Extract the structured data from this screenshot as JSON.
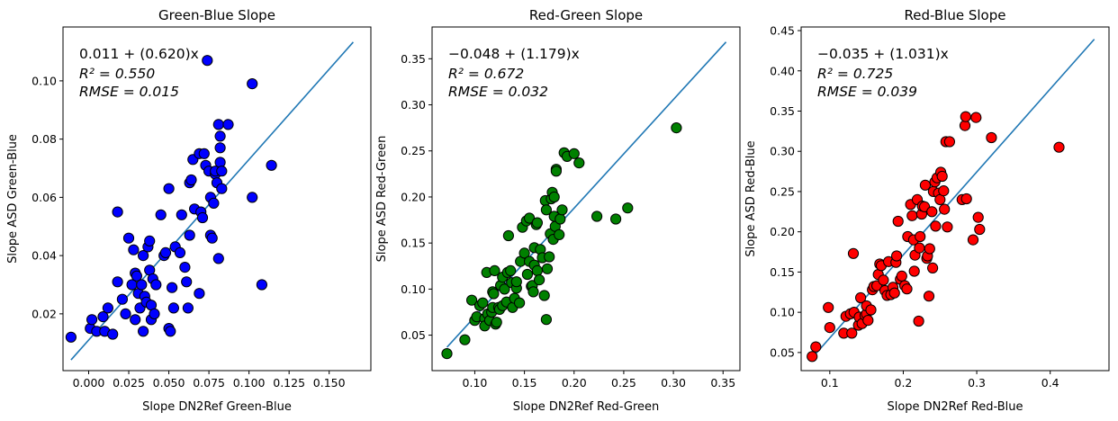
{
  "chart_data": [
    {
      "type": "scatter",
      "title": "Green-Blue Slope",
      "xlabel": "Slope DN2Ref Green-Blue",
      "ylabel": "Slope ASD Green-Blue",
      "xlim": [
        -0.016,
        0.176
      ],
      "ylim": [
        0.0005,
        0.1185
      ],
      "xticks": [
        0.0,
        0.025,
        0.05,
        0.075,
        0.1,
        0.125,
        0.15
      ],
      "xtick_labels": [
        "0.000",
        "0.025",
        "0.050",
        "0.075",
        "0.100",
        "0.125",
        "0.150"
      ],
      "yticks": [
        0.02,
        0.04,
        0.06,
        0.08,
        0.1
      ],
      "ytick_labels": [
        "0.02",
        "0.04",
        "0.06",
        "0.08",
        "0.10"
      ],
      "marker_color": "#0000ff",
      "line_color": "#1f77b4",
      "grid": false,
      "annotation": {
        "equation": "0.011 + (0.620)x",
        "r2": "R² = 0.550",
        "rmse": "RMSE = 0.015"
      },
      "fit_line": {
        "x": [
          -0.011,
          0.165
        ],
        "y": [
          0.00418,
          0.1133
        ]
      },
      "points": [
        [
          -0.011,
          0.012
        ],
        [
          0.001,
          0.015
        ],
        [
          0.002,
          0.018
        ],
        [
          0.005,
          0.014
        ],
        [
          0.009,
          0.019
        ],
        [
          0.01,
          0.014
        ],
        [
          0.012,
          0.022
        ],
        [
          0.015,
          0.013
        ],
        [
          0.018,
          0.031
        ],
        [
          0.018,
          0.055
        ],
        [
          0.021,
          0.025
        ],
        [
          0.023,
          0.02
        ],
        [
          0.025,
          0.046
        ],
        [
          0.027,
          0.03
        ],
        [
          0.028,
          0.042
        ],
        [
          0.029,
          0.034
        ],
        [
          0.029,
          0.018
        ],
        [
          0.03,
          0.033
        ],
        [
          0.031,
          0.027
        ],
        [
          0.032,
          0.022
        ],
        [
          0.033,
          0.03
        ],
        [
          0.034,
          0.014
        ],
        [
          0.034,
          0.04
        ],
        [
          0.035,
          0.026
        ],
        [
          0.036,
          0.024
        ],
        [
          0.037,
          0.043
        ],
        [
          0.038,
          0.045
        ],
        [
          0.038,
          0.035
        ],
        [
          0.039,
          0.018
        ],
        [
          0.039,
          0.023
        ],
        [
          0.04,
          0.032
        ],
        [
          0.041,
          0.02
        ],
        [
          0.042,
          0.03
        ],
        [
          0.045,
          0.054
        ],
        [
          0.047,
          0.04
        ],
        [
          0.048,
          0.041
        ],
        [
          0.05,
          0.063
        ],
        [
          0.05,
          0.015
        ],
        [
          0.051,
          0.014
        ],
        [
          0.052,
          0.029
        ],
        [
          0.053,
          0.022
        ],
        [
          0.054,
          0.043
        ],
        [
          0.057,
          0.041
        ],
        [
          0.058,
          0.054
        ],
        [
          0.06,
          0.036
        ],
        [
          0.061,
          0.031
        ],
        [
          0.062,
          0.022
        ],
        [
          0.063,
          0.047
        ],
        [
          0.063,
          0.065
        ],
        [
          0.064,
          0.066
        ],
        [
          0.065,
          0.073
        ],
        [
          0.066,
          0.056
        ],
        [
          0.069,
          0.075
        ],
        [
          0.069,
          0.027
        ],
        [
          0.07,
          0.055
        ],
        [
          0.071,
          0.053
        ],
        [
          0.072,
          0.075
        ],
        [
          0.073,
          0.071
        ],
        [
          0.074,
          0.107
        ],
        [
          0.075,
          0.069
        ],
        [
          0.076,
          0.06
        ],
        [
          0.076,
          0.047
        ],
        [
          0.077,
          0.046
        ],
        [
          0.078,
          0.058
        ],
        [
          0.079,
          0.068
        ],
        [
          0.079,
          0.069
        ],
        [
          0.08,
          0.065
        ],
        [
          0.081,
          0.039
        ],
        [
          0.081,
          0.085
        ],
        [
          0.082,
          0.081
        ],
        [
          0.082,
          0.077
        ],
        [
          0.082,
          0.072
        ],
        [
          0.083,
          0.063
        ],
        [
          0.083,
          0.069
        ],
        [
          0.087,
          0.085
        ],
        [
          0.102,
          0.099
        ],
        [
          0.102,
          0.06
        ],
        [
          0.108,
          0.03
        ],
        [
          0.114,
          0.071
        ]
      ]
    },
    {
      "type": "scatter",
      "title": "Red-Green Slope",
      "xlabel": "Slope DN2Ref Red-Green",
      "ylabel": "Slope ASD Red-Green",
      "xlim": [
        0.057,
        0.367
      ],
      "ylim": [
        0.0115,
        0.3845
      ],
      "xticks": [
        0.1,
        0.15,
        0.2,
        0.25,
        0.3,
        0.35
      ],
      "xtick_labels": [
        "0.10",
        "0.15",
        "0.20",
        "0.25",
        "0.30",
        "0.35"
      ],
      "yticks": [
        0.05,
        0.1,
        0.15,
        0.2,
        0.25,
        0.3,
        0.35
      ],
      "ytick_labels": [
        "0.05",
        "0.10",
        "0.15",
        "0.20",
        "0.25",
        "0.30",
        "0.35"
      ],
      "marker_color": "#008000",
      "line_color": "#1f77b4",
      "grid": false,
      "annotation": {
        "equation": "−0.048 + (1.179)x",
        "r2": "R² = 0.672",
        "rmse": "RMSE = 0.032"
      },
      "fit_line": {
        "x": [
          0.072,
          0.353
        ],
        "y": [
          0.0369,
          0.3682
        ]
      },
      "points": [
        [
          0.072,
          0.03
        ],
        [
          0.09,
          0.045
        ],
        [
          0.097,
          0.088
        ],
        [
          0.1,
          0.066
        ],
        [
          0.102,
          0.07
        ],
        [
          0.105,
          0.082
        ],
        [
          0.108,
          0.085
        ],
        [
          0.11,
          0.068
        ],
        [
          0.11,
          0.06
        ],
        [
          0.112,
          0.118
        ],
        [
          0.113,
          0.073
        ],
        [
          0.115,
          0.066
        ],
        [
          0.117,
          0.075
        ],
        [
          0.118,
          0.08
        ],
        [
          0.118,
          0.097
        ],
        [
          0.119,
          0.095
        ],
        [
          0.12,
          0.12
        ],
        [
          0.121,
          0.062
        ],
        [
          0.122,
          0.064
        ],
        [
          0.124,
          0.08
        ],
        [
          0.125,
          0.078
        ],
        [
          0.126,
          0.104
        ],
        [
          0.128,
          0.082
        ],
        [
          0.128,
          0.113
        ],
        [
          0.13,
          0.1
        ],
        [
          0.132,
          0.086
        ],
        [
          0.133,
          0.118
        ],
        [
          0.134,
          0.158
        ],
        [
          0.136,
          0.12
        ],
        [
          0.137,
          0.107
        ],
        [
          0.138,
          0.08
        ],
        [
          0.14,
          0.09
        ],
        [
          0.142,
          0.101
        ],
        [
          0.142,
          0.108
        ],
        [
          0.145,
          0.085
        ],
        [
          0.146,
          0.13
        ],
        [
          0.148,
          0.167
        ],
        [
          0.15,
          0.139
        ],
        [
          0.152,
          0.174
        ],
        [
          0.153,
          0.116
        ],
        [
          0.155,
          0.177
        ],
        [
          0.155,
          0.13
        ],
        [
          0.157,
          0.103
        ],
        [
          0.158,
          0.104
        ],
        [
          0.159,
          0.097
        ],
        [
          0.16,
          0.126
        ],
        [
          0.16,
          0.145
        ],
        [
          0.162,
          0.17
        ],
        [
          0.163,
          0.172
        ],
        [
          0.163,
          0.12
        ],
        [
          0.165,
          0.11
        ],
        [
          0.166,
          0.143
        ],
        [
          0.168,
          0.134
        ],
        [
          0.17,
          0.093
        ],
        [
          0.171,
          0.196
        ],
        [
          0.172,
          0.067
        ],
        [
          0.172,
          0.186
        ],
        [
          0.173,
          0.122
        ],
        [
          0.175,
          0.135
        ],
        [
          0.176,
          0.16
        ],
        [
          0.177,
          0.198
        ],
        [
          0.178,
          0.205
        ],
        [
          0.179,
          0.154
        ],
        [
          0.18,
          0.2
        ],
        [
          0.18,
          0.179
        ],
        [
          0.181,
          0.168
        ],
        [
          0.182,
          0.23
        ],
        [
          0.182,
          0.228
        ],
        [
          0.185,
          0.159
        ],
        [
          0.186,
          0.176
        ],
        [
          0.188,
          0.186
        ],
        [
          0.19,
          0.248
        ],
        [
          0.193,
          0.244
        ],
        [
          0.2,
          0.247
        ],
        [
          0.205,
          0.237
        ],
        [
          0.223,
          0.179
        ],
        [
          0.242,
          0.176
        ],
        [
          0.254,
          0.188
        ],
        [
          0.303,
          0.275
        ]
      ]
    },
    {
      "type": "scatter",
      "title": "Red-Blue Slope",
      "xlabel": "Slope DN2Ref Red-Blue",
      "ylabel": "Slope ASD Red-Blue",
      "xlim": [
        0.061,
        0.48
      ],
      "ylim": [
        0.0275,
        0.4545
      ],
      "xticks": [
        0.1,
        0.2,
        0.3,
        0.4
      ],
      "xtick_labels": [
        "0.1",
        "0.2",
        "0.3",
        "0.4"
      ],
      "yticks": [
        0.05,
        0.1,
        0.15,
        0.2,
        0.25,
        0.3,
        0.35,
        0.4,
        0.45
      ],
      "ytick_labels": [
        "0.05",
        "0.10",
        "0.15",
        "0.20",
        "0.25",
        "0.30",
        "0.35",
        "0.40",
        "0.45"
      ],
      "marker_color": "#ff0000",
      "line_color": "#1f77b4",
      "grid": false,
      "annotation": {
        "equation": "−0.035 + (1.031)x",
        "r2": "R² = 0.725",
        "rmse": "RMSE = 0.039"
      },
      "fit_line": {
        "x": [
          0.076,
          0.46
        ],
        "y": [
          0.0434,
          0.4393
        ]
      },
      "points": [
        [
          0.076,
          0.045
        ],
        [
          0.081,
          0.057
        ],
        [
          0.098,
          0.106
        ],
        [
          0.1,
          0.081
        ],
        [
          0.119,
          0.074
        ],
        [
          0.122,
          0.095
        ],
        [
          0.128,
          0.098
        ],
        [
          0.13,
          0.074
        ],
        [
          0.132,
          0.173
        ],
        [
          0.133,
          0.1
        ],
        [
          0.139,
          0.084
        ],
        [
          0.14,
          0.094
        ],
        [
          0.142,
          0.118
        ],
        [
          0.144,
          0.086
        ],
        [
          0.148,
          0.096
        ],
        [
          0.15,
          0.098
        ],
        [
          0.15,
          0.108
        ],
        [
          0.152,
          0.09
        ],
        [
          0.156,
          0.103
        ],
        [
          0.158,
          0.128
        ],
        [
          0.16,
          0.132
        ],
        [
          0.164,
          0.133
        ],
        [
          0.166,
          0.147
        ],
        [
          0.168,
          0.16
        ],
        [
          0.17,
          0.158
        ],
        [
          0.173,
          0.14
        ],
        [
          0.175,
          0.127
        ],
        [
          0.178,
          0.121
        ],
        [
          0.18,
          0.163
        ],
        [
          0.183,
          0.122
        ],
        [
          0.186,
          0.131
        ],
        [
          0.188,
          0.124
        ],
        [
          0.19,
          0.162
        ],
        [
          0.191,
          0.17
        ],
        [
          0.193,
          0.213
        ],
        [
          0.196,
          0.141
        ],
        [
          0.198,
          0.145
        ],
        [
          0.202,
          0.133
        ],
        [
          0.205,
          0.129
        ],
        [
          0.206,
          0.194
        ],
        [
          0.21,
          0.234
        ],
        [
          0.212,
          0.22
        ],
        [
          0.214,
          0.19
        ],
        [
          0.215,
          0.151
        ],
        [
          0.216,
          0.171
        ],
        [
          0.219,
          0.24
        ],
        [
          0.221,
          0.089
        ],
        [
          0.222,
          0.18
        ],
        [
          0.223,
          0.194
        ],
        [
          0.225,
          0.222
        ],
        [
          0.226,
          0.232
        ],
        [
          0.229,
          0.231
        ],
        [
          0.23,
          0.258
        ],
        [
          0.232,
          0.167
        ],
        [
          0.233,
          0.17
        ],
        [
          0.235,
          0.12
        ],
        [
          0.236,
          0.179
        ],
        [
          0.239,
          0.225
        ],
        [
          0.24,
          0.155
        ],
        [
          0.241,
          0.25
        ],
        [
          0.243,
          0.262
        ],
        [
          0.244,
          0.207
        ],
        [
          0.246,
          0.267
        ],
        [
          0.248,
          0.248
        ],
        [
          0.25,
          0.24
        ],
        [
          0.251,
          0.274
        ],
        [
          0.253,
          0.269
        ],
        [
          0.255,
          0.251
        ],
        [
          0.256,
          0.228
        ],
        [
          0.258,
          0.312
        ],
        [
          0.26,
          0.206
        ],
        [
          0.263,
          0.312
        ],
        [
          0.28,
          0.24
        ],
        [
          0.284,
          0.332
        ],
        [
          0.285,
          0.343
        ],
        [
          0.286,
          0.241
        ],
        [
          0.295,
          0.19
        ],
        [
          0.299,
          0.342
        ],
        [
          0.302,
          0.218
        ],
        [
          0.304,
          0.203
        ],
        [
          0.32,
          0.317
        ],
        [
          0.412,
          0.305
        ]
      ]
    }
  ]
}
